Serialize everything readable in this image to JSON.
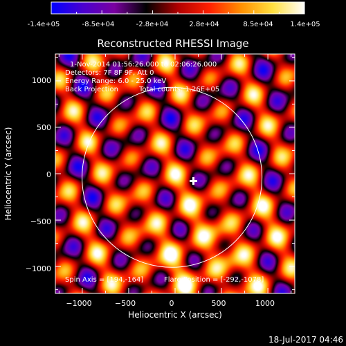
{
  "colorbar": {
    "tick_labels": [
      "-1.4e+05",
      "-8.5e+04",
      "-2.8e+04",
      "2.8e+04",
      "8.5e+04",
      "1.4e+05"
    ],
    "range": [
      -140000,
      140000
    ],
    "colors": [
      "#0000ff",
      "#4a00d0",
      "#7a00a0",
      "#000000",
      "#b00000",
      "#ff2000",
      "#ff9000",
      "#ffe040",
      "#ffffff"
    ]
  },
  "footer_timestamp": "18-Jul-2017 04:46",
  "chart_data": {
    "type": "heatmap",
    "title": "Reconstructed RHESSI Image",
    "xlabel": "Heliocentric X (arcsec)",
    "ylabel": "Heliocentric Y (arcsec)",
    "xlim": [
      -1290,
      1290
    ],
    "ylim": [
      -1290,
      1290
    ],
    "x_ticks": [
      -1000,
      -500,
      0,
      500,
      1000
    ],
    "x_tick_labels": [
      "−1000",
      "−500",
      "0",
      "500",
      "1000"
    ],
    "y_ticks": [
      -1000,
      -500,
      0,
      500,
      1000
    ],
    "y_tick_labels": [
      "−1000",
      "−500",
      "0",
      "500",
      "1000"
    ],
    "annotations": [
      "1-Nov-2014 01:56:26.000 to 02:06:26.000",
      "Detectors: 7F 8F 9F, Att 0",
      "Energy Range: 6.0 - 25.0 keV",
      "Back Projection",
      "Total counts: 1.26E+05",
      "Spin Axis = [194,-164]",
      "Flare Position = [-292,-1078]"
    ],
    "solar_limb_radius_arcsec": 968,
    "spin_axis": [
      194,
      -164
    ],
    "color_range": [
      -140000,
      140000
    ]
  }
}
